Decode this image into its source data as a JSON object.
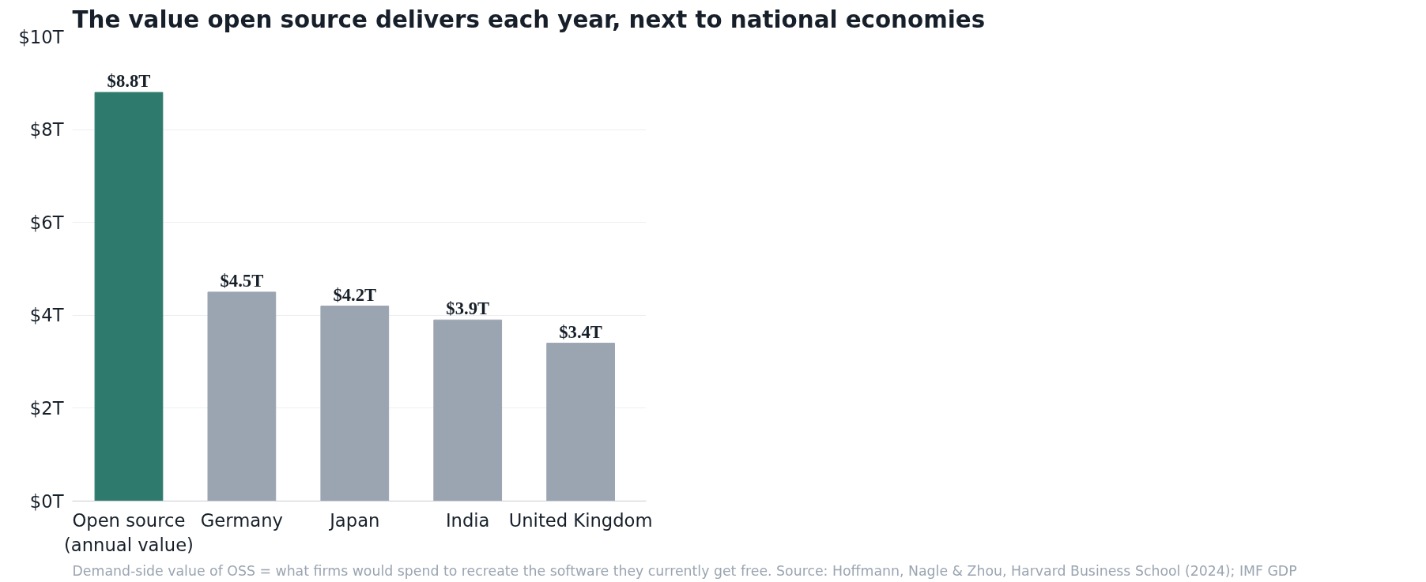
{
  "chart_data": {
    "type": "bar",
    "title": "The value open source delivers each year, next to national economies",
    "categories": [
      "Open source\n(annual value)",
      "Germany",
      "Japan",
      "India",
      "United Kingdom"
    ],
    "values": [
      8.8,
      4.5,
      4.2,
      3.9,
      3.4
    ],
    "colors": [
      "#2e7b6e",
      "#9ba5b1",
      "#9ba5b1",
      "#9ba5b1",
      "#9ba5b1"
    ],
    "value_labels": [
      "$8.8T",
      "$4.5T",
      "$4.2T",
      "$3.9T",
      "$3.4T"
    ],
    "ylim": [
      0,
      10
    ],
    "yticks": [
      {
        "value": 0,
        "label": "$0T"
      },
      {
        "value": 2,
        "label": "$2T"
      },
      {
        "value": 4,
        "label": "$4T"
      },
      {
        "value": 6,
        "label": "$6T"
      },
      {
        "value": 8,
        "label": "$8T"
      },
      {
        "value": 10,
        "label": "$10T"
      }
    ],
    "grid": "y",
    "annotations": [
      "Demand-side value of OSS = what firms would spend to recreate the software they currently get free.  Source: Hoffmann, Nagle & Zhou, Harvard Business School (2024); IMF GDP"
    ]
  }
}
